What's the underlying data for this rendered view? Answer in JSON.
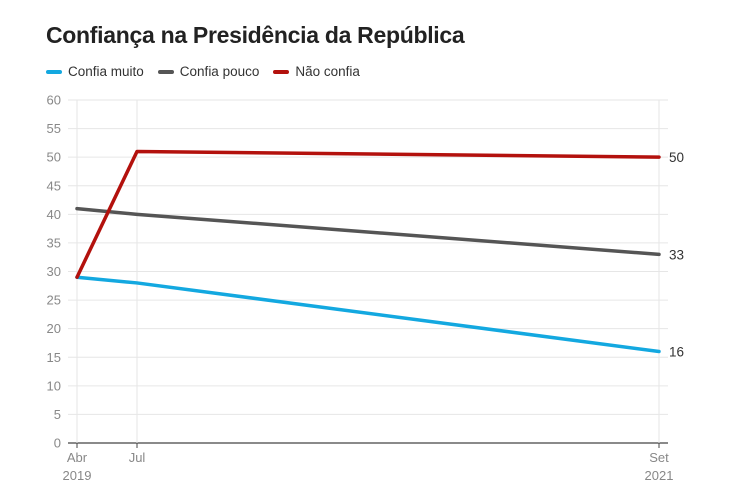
{
  "title": "Confiança na Presidência da República",
  "colors": {
    "Confia muito": "#13a8e0",
    "Confia pouco": "#555555",
    "Não confia": "#b3110d"
  },
  "chart_data": {
    "type": "line",
    "title": "Confiança na Presidência da República",
    "x": [
      "Abr 2019",
      "Jul",
      "Set 2021"
    ],
    "x_ticks": [
      {
        "line1": "Abr",
        "line2": "2019"
      },
      {
        "line1": "Jul",
        "line2": ""
      },
      {
        "line1": "Set",
        "line2": "2021"
      }
    ],
    "y_ticks": [
      "0",
      "5",
      "10",
      "15",
      "20",
      "25",
      "30",
      "35",
      "40",
      "45",
      "50",
      "55",
      "60"
    ],
    "ylim": [
      0,
      60
    ],
    "grid": true,
    "legend_position": "top-left",
    "series": [
      {
        "name": "Confia muito",
        "color": "#13a8e0",
        "values": [
          29,
          28,
          16
        ],
        "end_label": "16"
      },
      {
        "name": "Confia pouco",
        "color": "#555555",
        "values": [
          41,
          40,
          33
        ],
        "end_label": "33"
      },
      {
        "name": "Não confia",
        "color": "#b3110d",
        "values": [
          29,
          51,
          50
        ],
        "end_label": "50"
      }
    ]
  }
}
